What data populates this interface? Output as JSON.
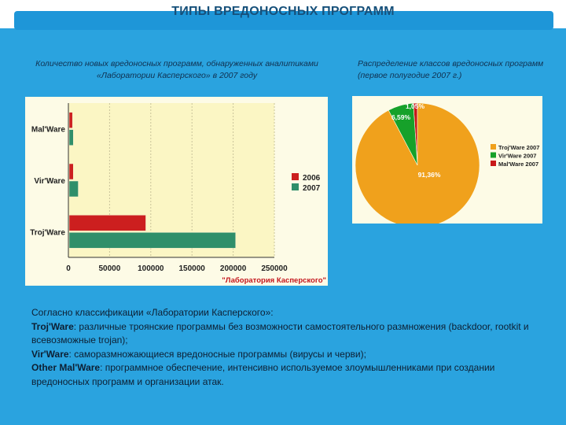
{
  "header": {
    "title": "ТИПЫ ВРЕДОНОСНЫХ ПРОГРАММ"
  },
  "captions": {
    "left": "Количество новых вредоносных программ, обнаруженных аналитиками «Лаборатории Касперского» в 2007 году",
    "right": "Распределение классов вредоносных программ (первое полугодие 2007 г.)"
  },
  "chart_data": [
    {
      "type": "bar",
      "orientation": "horizontal",
      "categories": [
        "Mal'Ware",
        "Vir'Ware",
        "Troj'Ware"
      ],
      "series": [
        {
          "name": "2006",
          "color": "#cc1f1f",
          "values": [
            4000,
            5000,
            93000
          ]
        },
        {
          "name": "2007",
          "color": "#2f8f6a",
          "values": [
            5000,
            11000,
            202000
          ]
        }
      ],
      "xlim": [
        0,
        250000
      ],
      "xticks": [
        "0",
        "50000",
        "100000",
        "150000",
        "200000",
        "250000"
      ],
      "grid": true,
      "legend": "right",
      "source": "\"Лаборатория Касперского\""
    },
    {
      "type": "pie",
      "labels": [
        "Troj'Ware 2007",
        "Vir'Ware 2007",
        "Mal'Ware 2007"
      ],
      "values": [
        91.36,
        6.59,
        1.05
      ],
      "value_labels": [
        "91,36%",
        "6,59%",
        "1,05%"
      ],
      "colors": [
        "#f0a11c",
        "#16a12a",
        "#c81818"
      ],
      "legend": "right"
    }
  ],
  "body": {
    "intro": "Согласно классификации «Лаборатории Касперского»:",
    "items": [
      {
        "term": "Troj'Ware",
        "text": ": различные троянские программы без возможности самостоятельного размножения (backdoor, rootkit и всевозможные trojan);"
      },
      {
        "term": "Vir'Ware",
        "text": ": саморазмножающиеся вредоносные программы (вирусы и черви);"
      },
      {
        "term": "Other Mal'Ware",
        "text": ": программное обеспечение, интенсивно используемое злоумышленниками при создании вредоносных программ и организации атак."
      }
    ]
  }
}
